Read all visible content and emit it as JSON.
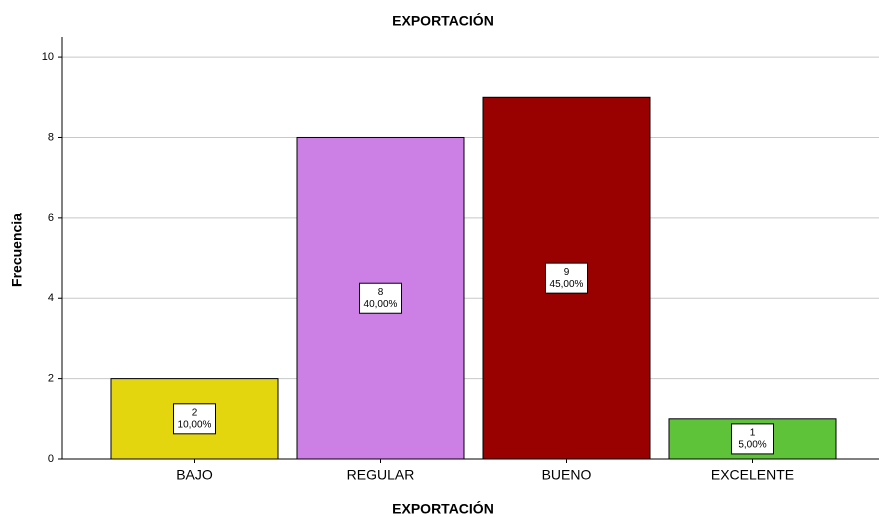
{
  "chart_data": {
    "type": "bar",
    "title": "EXPORTACIÓN",
    "x_label": "EXPORTACIÓN",
    "y_label": "Frecuencia",
    "categories": [
      "BAJO",
      "REGULAR",
      "BUENO",
      "EXCELENTE"
    ],
    "values": [
      2,
      8,
      9,
      1
    ],
    "percents": [
      10,
      40,
      45,
      5
    ],
    "percent_labels": [
      "10,00%",
      "40,00%",
      "45,00%",
      "5,00%"
    ],
    "colors": [
      "#e3d60f",
      "#cc80e5",
      "#990000",
      "#5fc33a"
    ],
    "ylim": [
      0,
      10.5
    ],
    "yticks": [
      0,
      2,
      4,
      6,
      8,
      10
    ],
    "grid": true
  }
}
